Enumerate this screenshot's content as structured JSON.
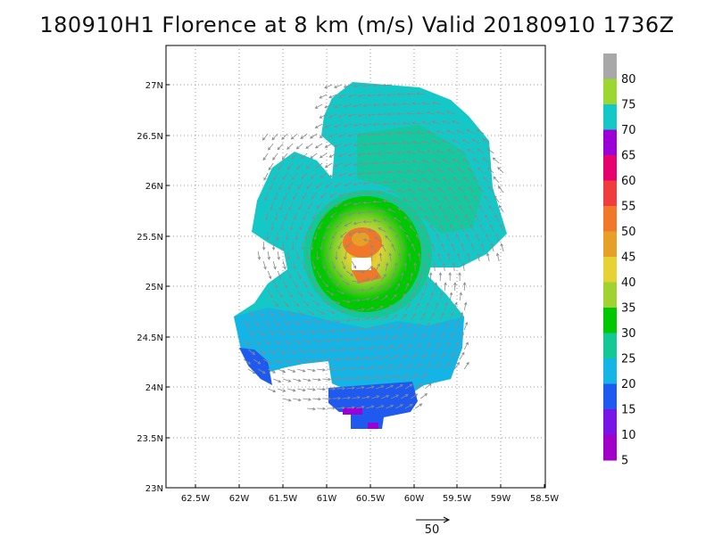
{
  "title": "180910H1 Florence at 8 km (m/s) Valid 20180910 1736Z",
  "lat_ticks": [
    "27N",
    "26.5N",
    "26N",
    "25.5N",
    "25N",
    "24.5N",
    "24N",
    "23.5N",
    "23N"
  ],
  "lon_ticks": [
    "62.5W",
    "62W",
    "61.5W",
    "61W",
    "60.5W",
    "60W",
    "59.5W",
    "59W",
    "58.5W"
  ],
  "colorbar": {
    "labels": [
      "80",
      "75",
      "70",
      "65",
      "60",
      "55",
      "50",
      "45",
      "40",
      "35",
      "30",
      "25",
      "20",
      "15",
      "10",
      "5"
    ],
    "colors": [
      "#a8a8a8",
      "#9bd631",
      "#14c8c8",
      "#9b00d6",
      "#e6006e",
      "#f03c3c",
      "#f07828",
      "#e6a028",
      "#e6d232",
      "#a0d232",
      "#00c800",
      "#14c896",
      "#14b4e6",
      "#1e5af0",
      "#7814e6",
      "#a000c8"
    ]
  },
  "vector_scale_label": "50",
  "storm": {
    "name": "Florence",
    "center_lat": 25.3,
    "center_lon": -60.6,
    "max_wind": 55
  }
}
